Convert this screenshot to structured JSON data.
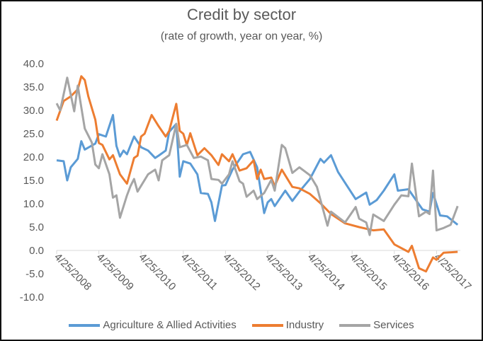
{
  "chart_data": {
    "type": "line",
    "title": "Credit by sector",
    "subtitle": "(rate of growth, year on year, %)",
    "xlabel": "",
    "ylabel": "",
    "ylim": [
      -10,
      40
    ],
    "yticks": [
      "-10.0",
      "-5.0",
      "0.0",
      "5.0",
      "10.0",
      "15.0",
      "20.0",
      "25.0",
      "30.0",
      "35.0",
      "40.0"
    ],
    "xticks": [
      "4/25/2008",
      "4/25/2009",
      "4/25/2010",
      "4/25/2011",
      "4/25/2012",
      "4/25/2013",
      "4/25/2014",
      "4/25/2015",
      "4/25/2016",
      "4/25/2017"
    ],
    "grid": false,
    "legend": "bottom",
    "series": [
      {
        "name": "Agriculture & Allied Activities",
        "color": "#5B9BD5",
        "points": [
          [
            "2008-04",
            19.3
          ],
          [
            "2008-06",
            19.1
          ],
          [
            "2008-07",
            15
          ],
          [
            "2008-08",
            17.8
          ],
          [
            "2008-10",
            19.6
          ],
          [
            "2008-11",
            23.4
          ],
          [
            "2008-12",
            21.6
          ],
          [
            "2009-03",
            22.9
          ],
          [
            "2009-04",
            24.9
          ],
          [
            "2009-06",
            24.4
          ],
          [
            "2009-08",
            29
          ],
          [
            "2009-09",
            22.4
          ],
          [
            "2009-10",
            20.1
          ],
          [
            "2009-11",
            21.4
          ],
          [
            "2009-12",
            20.6
          ],
          [
            "2010-02",
            24.4
          ],
          [
            "2010-04",
            22.1
          ],
          [
            "2010-06",
            21.4
          ],
          [
            "2010-08",
            19.8
          ],
          [
            "2010-09",
            20.3
          ],
          [
            "2010-11",
            21.4
          ],
          [
            "2010-12",
            25.4
          ],
          [
            "2011-02",
            27.1
          ],
          [
            "2011-03",
            15.8
          ],
          [
            "2011-04",
            19.1
          ],
          [
            "2011-06",
            18.6
          ],
          [
            "2011-08",
            16.3
          ],
          [
            "2011-09",
            12.3
          ],
          [
            "2011-11",
            12.1
          ],
          [
            "2011-12",
            10.3
          ],
          [
            "2012-01",
            6.3
          ],
          [
            "2012-03",
            13.9
          ],
          [
            "2012-04",
            14
          ],
          [
            "2012-06",
            17.3
          ],
          [
            "2012-09",
            20.6
          ],
          [
            "2012-11",
            21.1
          ],
          [
            "2013-01",
            17.8
          ],
          [
            "2013-03",
            8
          ],
          [
            "2013-04",
            10.3
          ],
          [
            "2013-05",
            11
          ],
          [
            "2013-06",
            9.5
          ],
          [
            "2013-09",
            12.8
          ],
          [
            "2013-11",
            10.6
          ],
          [
            "2014-01",
            12.6
          ],
          [
            "2014-04",
            15.3
          ],
          [
            "2014-07",
            19.6
          ],
          [
            "2014-08",
            18.8
          ],
          [
            "2014-10",
            20.4
          ],
          [
            "2014-12",
            16.8
          ],
          [
            "2015-05",
            11
          ],
          [
            "2015-08",
            12.4
          ],
          [
            "2015-09",
            9.8
          ],
          [
            "2015-11",
            10.8
          ],
          [
            "2016-01",
            12.8
          ],
          [
            "2016-04",
            16.3
          ],
          [
            "2016-05",
            12.8
          ],
          [
            "2016-08",
            13.1
          ],
          [
            "2016-12",
            8.8
          ],
          [
            "2017-02",
            8.3
          ],
          [
            "2017-03",
            12.3
          ],
          [
            "2017-05",
            7.5
          ],
          [
            "2017-07",
            7.3
          ],
          [
            "2017-10",
            5.5
          ]
        ]
      },
      {
        "name": "Industry",
        "color": "#ED7D31",
        "points": [
          [
            "2008-04",
            27.8
          ],
          [
            "2008-06",
            32
          ],
          [
            "2008-08",
            33
          ],
          [
            "2008-10",
            34.5
          ],
          [
            "2008-11",
            37.3
          ],
          [
            "2008-12",
            36.5
          ],
          [
            "2009-01",
            33
          ],
          [
            "2009-03",
            28
          ],
          [
            "2009-04",
            23
          ],
          [
            "2009-05",
            22.6
          ],
          [
            "2009-07",
            19.5
          ],
          [
            "2009-08",
            20.4
          ],
          [
            "2009-10",
            16.3
          ],
          [
            "2009-12",
            14.3
          ],
          [
            "2010-02",
            19.8
          ],
          [
            "2010-03",
            20.3
          ],
          [
            "2010-04",
            24.4
          ],
          [
            "2010-05",
            25
          ],
          [
            "2010-07",
            29
          ],
          [
            "2010-09",
            26.6
          ],
          [
            "2010-11",
            24.4
          ],
          [
            "2010-12",
            25.6
          ],
          [
            "2011-02",
            31.4
          ],
          [
            "2011-03",
            25.6
          ],
          [
            "2011-04",
            25
          ],
          [
            "2011-05",
            22.6
          ],
          [
            "2011-06",
            25.1
          ],
          [
            "2011-08",
            20.4
          ],
          [
            "2011-10",
            21.9
          ],
          [
            "2011-12",
            20.4
          ],
          [
            "2012-02",
            18.3
          ],
          [
            "2012-03",
            20.6
          ],
          [
            "2012-05",
            19.1
          ],
          [
            "2012-06",
            20.6
          ],
          [
            "2012-08",
            17.1
          ],
          [
            "2012-10",
            17.6
          ],
          [
            "2012-12",
            19.3
          ],
          [
            "2013-01",
            15.3
          ],
          [
            "2013-02",
            17.3
          ],
          [
            "2013-03",
            15.3
          ],
          [
            "2013-05",
            15.6
          ],
          [
            "2013-06",
            13.8
          ],
          [
            "2013-08",
            17.3
          ],
          [
            "2013-11",
            13.6
          ],
          [
            "2014-01",
            13.3
          ],
          [
            "2014-04",
            12.1
          ],
          [
            "2014-07",
            10.1
          ],
          [
            "2014-10",
            7.8
          ],
          [
            "2015-02",
            5.8
          ],
          [
            "2015-06",
            5
          ],
          [
            "2015-10",
            4.3
          ],
          [
            "2016-01",
            4.5
          ],
          [
            "2016-04",
            1.3
          ],
          [
            "2016-08",
            -0.3
          ],
          [
            "2016-09",
            1
          ],
          [
            "2016-11",
            -3.8
          ],
          [
            "2017-01",
            -4.5
          ],
          [
            "2017-03",
            -1.5
          ],
          [
            "2017-04",
            -2
          ],
          [
            "2017-06",
            -0.5
          ],
          [
            "2017-10",
            -0.3
          ]
        ]
      },
      {
        "name": "Services",
        "color": "#A5A5A5",
        "points": [
          [
            "2008-04",
            31.5
          ],
          [
            "2008-05",
            30
          ],
          [
            "2008-07",
            37
          ],
          [
            "2008-09",
            29.8
          ],
          [
            "2008-10",
            35.3
          ],
          [
            "2008-12",
            26.1
          ],
          [
            "2009-02",
            23.1
          ],
          [
            "2009-03",
            18.4
          ],
          [
            "2009-04",
            17.6
          ],
          [
            "2009-05",
            20.6
          ],
          [
            "2009-07",
            16.3
          ],
          [
            "2009-08",
            11.3
          ],
          [
            "2009-09",
            11.8
          ],
          [
            "2009-10",
            7
          ],
          [
            "2009-12",
            11.8
          ],
          [
            "2010-01",
            13.8
          ],
          [
            "2010-02",
            15.3
          ],
          [
            "2010-03",
            12.6
          ],
          [
            "2010-06",
            16.3
          ],
          [
            "2010-08",
            17.3
          ],
          [
            "2010-09",
            15
          ],
          [
            "2010-10",
            19.3
          ],
          [
            "2010-12",
            20.4
          ],
          [
            "2011-02",
            27.1
          ],
          [
            "2011-03",
            22.1
          ],
          [
            "2011-05",
            22.6
          ],
          [
            "2011-07",
            19.8
          ],
          [
            "2011-09",
            20.1
          ],
          [
            "2011-11",
            19.3
          ],
          [
            "2011-12",
            15.3
          ],
          [
            "2012-02",
            15.1
          ],
          [
            "2012-03",
            14.3
          ],
          [
            "2012-05",
            16.3
          ],
          [
            "2012-06",
            19.1
          ],
          [
            "2012-08",
            14.8
          ],
          [
            "2012-09",
            14.3
          ],
          [
            "2012-10",
            11.5
          ],
          [
            "2012-12",
            12.8
          ],
          [
            "2013-01",
            11
          ],
          [
            "2013-03",
            12.3
          ],
          [
            "2013-05",
            15.1
          ],
          [
            "2013-06",
            12.8
          ],
          [
            "2013-08",
            22.6
          ],
          [
            "2013-09",
            21.9
          ],
          [
            "2013-11",
            16.6
          ],
          [
            "2014-01",
            17.8
          ],
          [
            "2014-04",
            16.1
          ],
          [
            "2014-06",
            13.6
          ],
          [
            "2014-09",
            5.3
          ],
          [
            "2014-10",
            8.3
          ],
          [
            "2015-02",
            6
          ],
          [
            "2015-05",
            9.3
          ],
          [
            "2015-06",
            6.8
          ],
          [
            "2015-08",
            6
          ],
          [
            "2015-09",
            3.3
          ],
          [
            "2015-10",
            7.7
          ],
          [
            "2016-01",
            6.3
          ],
          [
            "2016-04",
            9.8
          ],
          [
            "2016-06",
            11.8
          ],
          [
            "2016-08",
            11.6
          ],
          [
            "2016-09",
            18.6
          ],
          [
            "2016-11",
            7.3
          ],
          [
            "2017-01",
            8.3
          ],
          [
            "2017-02",
            7.8
          ],
          [
            "2017-03",
            17.1
          ],
          [
            "2017-04",
            4.3
          ],
          [
            "2017-06",
            4.8
          ],
          [
            "2017-08",
            5.5
          ],
          [
            "2017-10",
            9.5
          ]
        ]
      }
    ]
  }
}
